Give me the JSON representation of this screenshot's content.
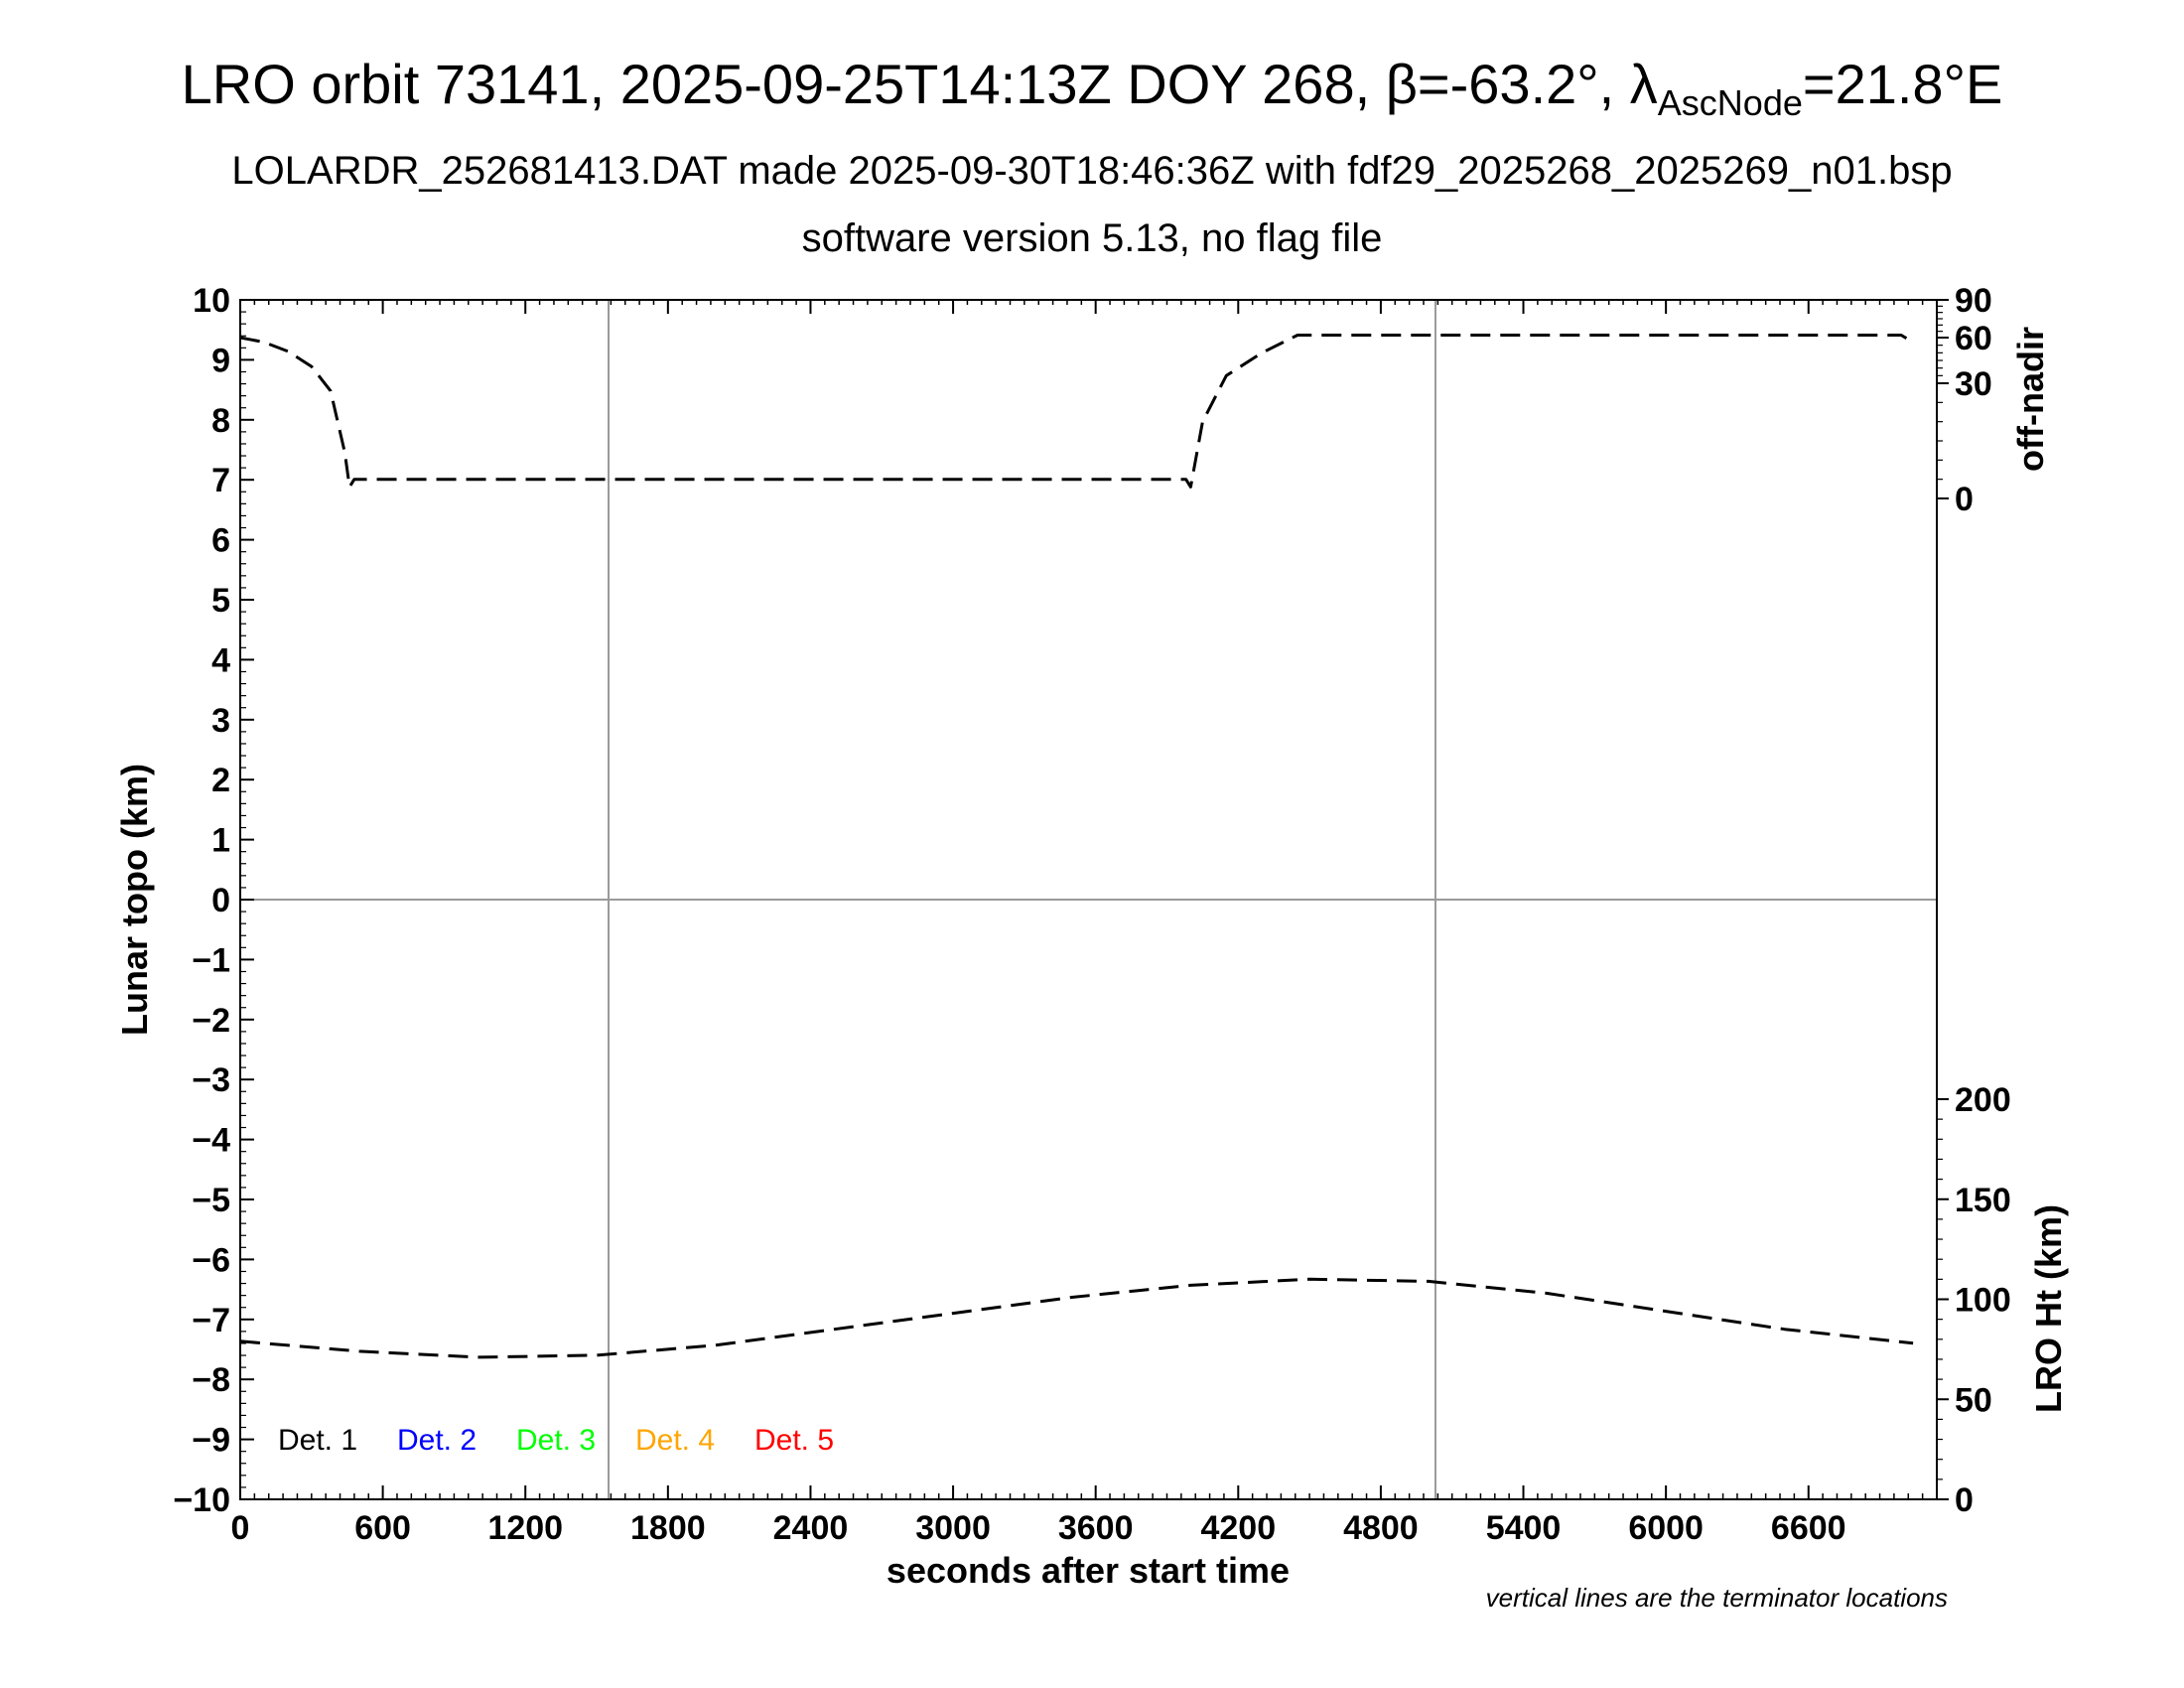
{
  "title": {
    "prefix": "LRO orbit 73141, 2025-09-25T14:13Z DOY 268, ",
    "beta": "β=-63.2°, ",
    "lambda": "λ",
    "sub": "AscNode",
    "suffix": "=21.8°E"
  },
  "subtitle": "LOLARDR_252681413.DAT made 2025-09-30T18:46:36Z with fdf29_2025268_2025269_n01.bsp",
  "subtitle2": "software version 5.13, no flag file",
  "chart_data": {
    "type": "line",
    "xlabel": "seconds after start time",
    "ylabel_left": "Lunar topo (km)",
    "ylabel_right_top": "off-nadir",
    "ylabel_right_bottom": "LRO Ht (km)",
    "xlim": [
      0,
      7140
    ],
    "x_ticks": [
      0,
      600,
      1200,
      1800,
      2400,
      3000,
      3600,
      4200,
      4800,
      5400,
      6000,
      6600
    ],
    "ylim_left": [
      -10,
      10
    ],
    "y_ticks_left": [
      10,
      9,
      8,
      7,
      6,
      5,
      4,
      3,
      2,
      1,
      0,
      -1,
      -2,
      -3,
      -4,
      -5,
      -6,
      -7,
      -8,
      -9,
      -10
    ],
    "y_tick_labels_left": [
      "10",
      "9",
      "8",
      "7",
      "6",
      "5",
      "4",
      "3",
      "2",
      "1",
      "0",
      "−1",
      "−2",
      "−3",
      "−4",
      "−5",
      "−6",
      "−7",
      "−8",
      "−9",
      "−10"
    ],
    "off_nadir_ticks": [
      90,
      60,
      30,
      0
    ],
    "lro_ht_ticks": [
      200,
      150,
      100,
      50,
      0
    ],
    "terminator_x": [
      1550,
      5030
    ],
    "zero_line_y": 0,
    "legend": [
      {
        "label": "Det. 1",
        "color": "#000000"
      },
      {
        "label": "Det. 2",
        "color": "#0000ff"
      },
      {
        "label": "Det. 3",
        "color": "#00ff00"
      },
      {
        "label": "Det. 4",
        "color": "#ffa500"
      },
      {
        "label": "Det. 5",
        "color": "#ff0000"
      }
    ],
    "series": [
      {
        "axis": "off-nadir",
        "style": "dashed",
        "x": [
          0,
          100,
          200,
          300,
          380,
          440,
          460,
          480,
          3980,
          4000,
          4050,
          4150,
          4300,
          4450,
          4500,
          6850,
          6990,
          7040
        ],
        "y": [
          60,
          57,
          51,
          41,
          28,
          12,
          3,
          5,
          5,
          3,
          20,
          35,
          50,
          62,
          62,
          62,
          62,
          57
        ]
      },
      {
        "axis": "LRO Ht",
        "style": "dashed",
        "x": [
          0,
          500,
          1000,
          1500,
          2000,
          2500,
          3000,
          3500,
          4000,
          4500,
          5000,
          5500,
          6000,
          6500,
          7040
        ],
        "y": [
          79,
          74,
          71,
          72,
          77,
          85,
          93,
          101,
          107,
          110,
          109,
          103,
          94,
          85,
          78
        ]
      }
    ],
    "note": "vertical lines are the terminator locations"
  }
}
